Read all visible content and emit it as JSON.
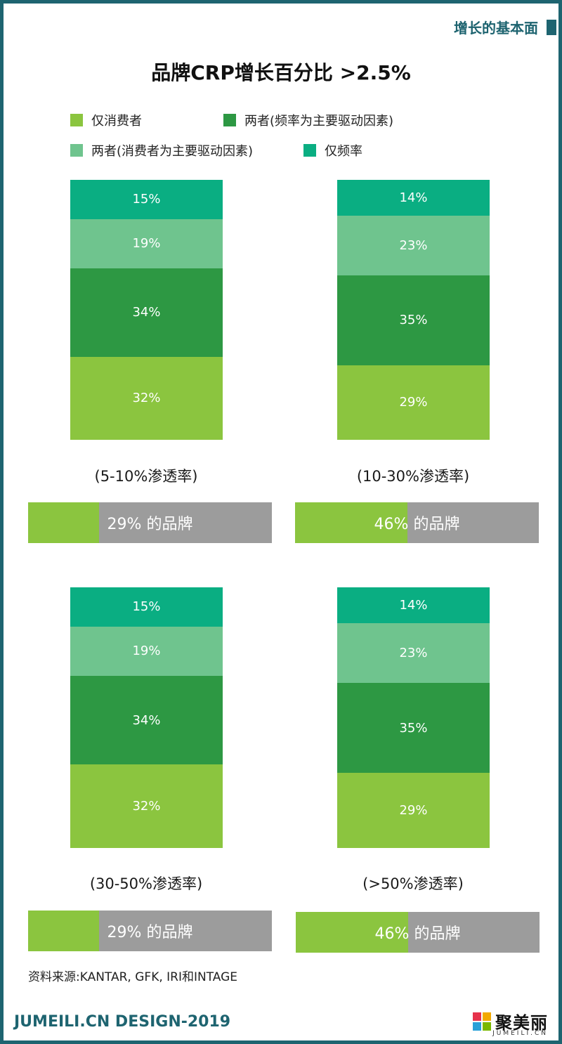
{
  "header": {
    "tag": "增长的基本面"
  },
  "colors": {
    "frame": "#1e6470",
    "consumer_only": "#8bc53f",
    "both_frequency": "#2d9843",
    "both_consumer": "#6fc48e",
    "frequency_only": "#0aae82",
    "share_bg": "#9c9c9c"
  },
  "chart_data": {
    "type": "bar",
    "title": "品牌CRP增长百分比 >2.5%",
    "legend": [
      "仅消费者",
      "两者(频率为主要驱动因素)",
      "两者(消费者为主要驱动因素)",
      "仅频率"
    ],
    "panels": [
      {
        "caption": "(5-10%渗透率)",
        "segments": [
          {
            "name": "仅消费者",
            "value": 32,
            "label": "32%"
          },
          {
            "name": "两者(频率为主要驱动因素)",
            "value": 34,
            "label": "34%"
          },
          {
            "name": "两者(消费者为主要驱动因素)",
            "value": 19,
            "label": "19%"
          },
          {
            "name": "仅频率",
            "value": 15,
            "label": "15%"
          }
        ],
        "share": {
          "value": 29,
          "label": "29% 的品牌"
        }
      },
      {
        "caption": "(10-30%渗透率)",
        "segments": [
          {
            "name": "仅消费者",
            "value": 29,
            "label": "29%"
          },
          {
            "name": "两者(频率为主要驱动因素)",
            "value": 35,
            "label": "35%"
          },
          {
            "name": "两者(消费者为主要驱动因素)",
            "value": 23,
            "label": "23%"
          },
          {
            "name": "仅频率",
            "value": 14,
            "label": "14%"
          }
        ],
        "share": {
          "value": 46,
          "label": "46% 的品牌"
        }
      },
      {
        "caption": "(30-50%渗透率)",
        "segments": [
          {
            "name": "仅消费者",
            "value": 32,
            "label": "32%"
          },
          {
            "name": "两者(频率为主要驱动因素)",
            "value": 34,
            "label": "34%"
          },
          {
            "name": "两者(消费者为主要驱动因素)",
            "value": 19,
            "label": "19%"
          },
          {
            "name": "仅频率",
            "value": 15,
            "label": "15%"
          }
        ],
        "share": {
          "value": 29,
          "label": "29% 的品牌"
        }
      },
      {
        "caption": "(>50%渗透率)",
        "segments": [
          {
            "name": "仅消费者",
            "value": 29,
            "label": "29%"
          },
          {
            "name": "两者(频率为主要驱动因素)",
            "value": 35,
            "label": "35%"
          },
          {
            "name": "两者(消费者为主要驱动因素)",
            "value": 23,
            "label": "23%"
          },
          {
            "name": "仅频率",
            "value": 14,
            "label": "14%"
          }
        ],
        "share": {
          "value": 46,
          "label": "46% 的品牌"
        }
      }
    ]
  },
  "footer": {
    "source": "资料来源:KANTAR, GFK, IRI和INTAGE",
    "brand_left": "JUMEILI.CN DESIGN-2019",
    "brand_right": "聚美丽",
    "brand_right_sub": "JUMEILI.CN"
  }
}
